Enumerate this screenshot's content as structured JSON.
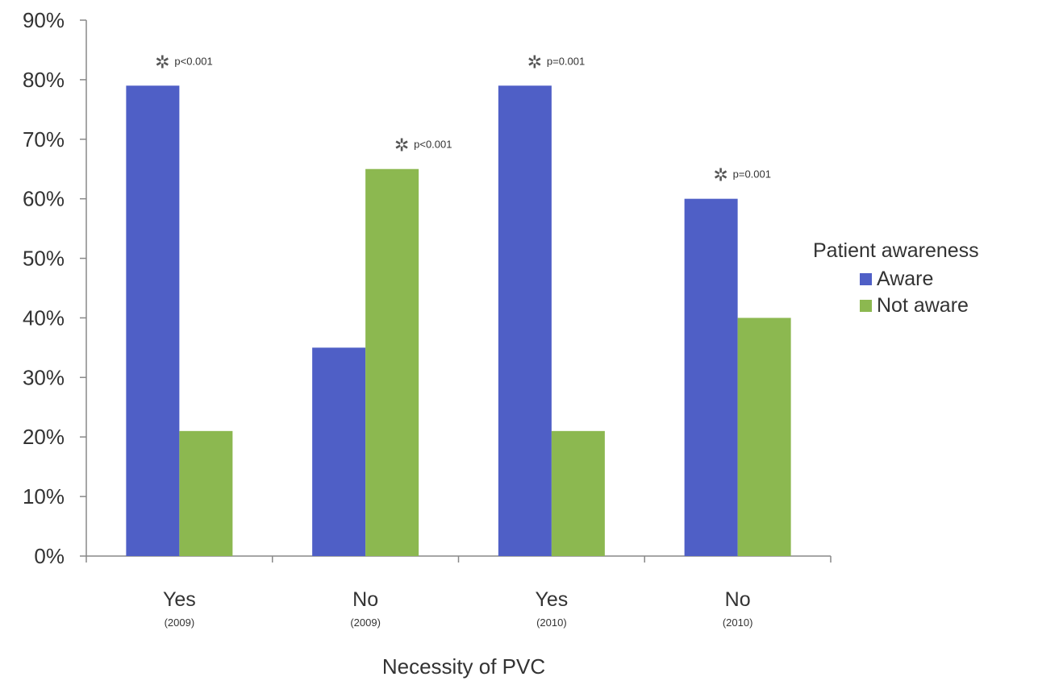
{
  "chart_data": {
    "type": "bar",
    "categories": [
      {
        "main": "Yes",
        "sub": "(2009)"
      },
      {
        "main": "No",
        "sub": "(2009)"
      },
      {
        "main": "Yes",
        "sub": "(2010)"
      },
      {
        "main": "No",
        "sub": "(2010)"
      }
    ],
    "series": [
      {
        "name": "Aware",
        "color": "#4f5fc6",
        "values": [
          79,
          35,
          79,
          60
        ]
      },
      {
        "name": "Not aware",
        "color": "#8cb850",
        "values": [
          21,
          65,
          21,
          40
        ]
      }
    ],
    "annotations": [
      "p<0.001",
      "p<0.001",
      "p=0.001",
      "p=0.001"
    ],
    "annotation_marker": "✲",
    "xlabel": "Necessity of PVC",
    "ylabel": "",
    "ylim": [
      0,
      90
    ],
    "yticks": [
      "0%",
      "10%",
      "20%",
      "30%",
      "40%",
      "50%",
      "60%",
      "70%",
      "80%",
      "90%"
    ],
    "grid": false,
    "legend_title": "Patient awareness",
    "legend_position": "right"
  }
}
